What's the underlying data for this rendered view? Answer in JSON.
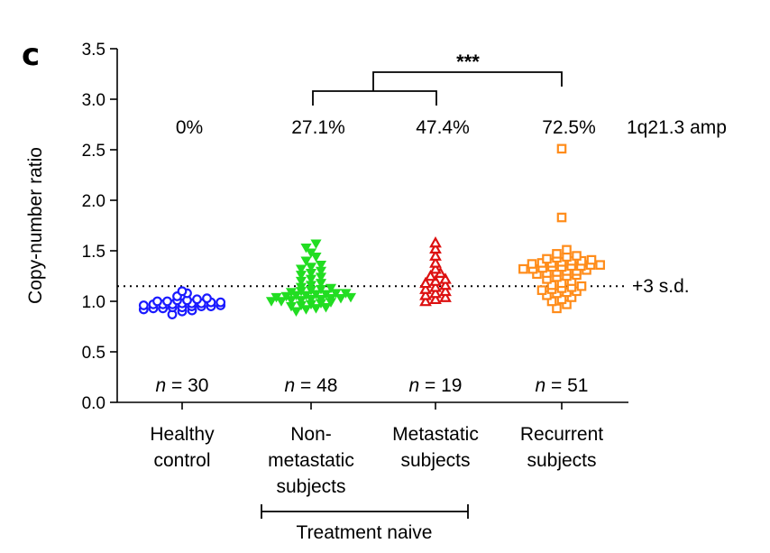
{
  "panel_label": "c",
  "chart_data": {
    "type": "scatter",
    "ylabel": "Copy-number ratio",
    "ylim": [
      0.0,
      3.5
    ],
    "yticks": [
      "0.0",
      "0.5",
      "1.0",
      "1.5",
      "2.0",
      "2.5",
      "3.0",
      "3.5"
    ],
    "grid": false,
    "categories": [
      [
        "Healthy",
        "control"
      ],
      [
        "Non-",
        "metastatic",
        "subjects"
      ],
      [
        "Metastatic",
        "subjects"
      ],
      [
        "Recurrent",
        "subjects"
      ]
    ],
    "percentages": [
      "0%",
      "27.1%",
      "47.4%",
      "72.5%"
    ],
    "percentage_label": "1q21.3 amp",
    "n_prefix": "n",
    "n_values": [
      "= 30",
      "= 48",
      "= 19",
      "= 51"
    ],
    "threshold": {
      "value": 1.15,
      "label": "+3 s.d."
    },
    "significance": "***",
    "treatment_group": "Treatment naive",
    "series": [
      {
        "marker": "circle",
        "color": "#1a1aff",
        "values": [
          0.87,
          0.9,
          0.91,
          0.92,
          0.93,
          0.93,
          0.94,
          0.94,
          0.95,
          0.95,
          0.95,
          0.96,
          0.96,
          0.97,
          0.97,
          0.97,
          0.98,
          0.98,
          0.98,
          0.99,
          0.99,
          1.0,
          1.0,
          1.01,
          1.01,
          1.02,
          1.03,
          1.05,
          1.08,
          1.1
        ]
      },
      {
        "marker": "triangle-down",
        "color": "#22dd22",
        "values": [
          0.9,
          0.92,
          0.93,
          0.94,
          0.95,
          0.96,
          0.97,
          0.98,
          0.99,
          1.0,
          1.0,
          1.01,
          1.01,
          1.02,
          1.02,
          1.03,
          1.03,
          1.04,
          1.04,
          1.05,
          1.06,
          1.06,
          1.07,
          1.07,
          1.08,
          1.08,
          1.09,
          1.1,
          1.11,
          1.12,
          1.13,
          1.14,
          1.16,
          1.18,
          1.2,
          1.22,
          1.24,
          1.26,
          1.28,
          1.3,
          1.32,
          1.34,
          1.36,
          1.4,
          1.44,
          1.48,
          1.53,
          1.57
        ]
      },
      {
        "marker": "triangle-up",
        "color": "#dd1111",
        "values": [
          1.0,
          1.02,
          1.04,
          1.06,
          1.08,
          1.1,
          1.12,
          1.14,
          1.16,
          1.18,
          1.2,
          1.22,
          1.25,
          1.28,
          1.32,
          1.38,
          1.45,
          1.52,
          1.58
        ]
      },
      {
        "marker": "square",
        "color": "#ff8c1a",
        "values": [
          0.93,
          0.97,
          1.0,
          1.02,
          1.04,
          1.06,
          1.08,
          1.09,
          1.1,
          1.11,
          1.12,
          1.13,
          1.14,
          1.15,
          1.16,
          1.18,
          1.2,
          1.22,
          1.24,
          1.25,
          1.26,
          1.27,
          1.28,
          1.29,
          1.3,
          1.3,
          1.31,
          1.32,
          1.32,
          1.33,
          1.34,
          1.34,
          1.35,
          1.35,
          1.36,
          1.36,
          1.37,
          1.38,
          1.38,
          1.39,
          1.4,
          1.4,
          1.41,
          1.42,
          1.43,
          1.44,
          1.45,
          1.47,
          1.51,
          1.83,
          2.51
        ]
      }
    ]
  }
}
